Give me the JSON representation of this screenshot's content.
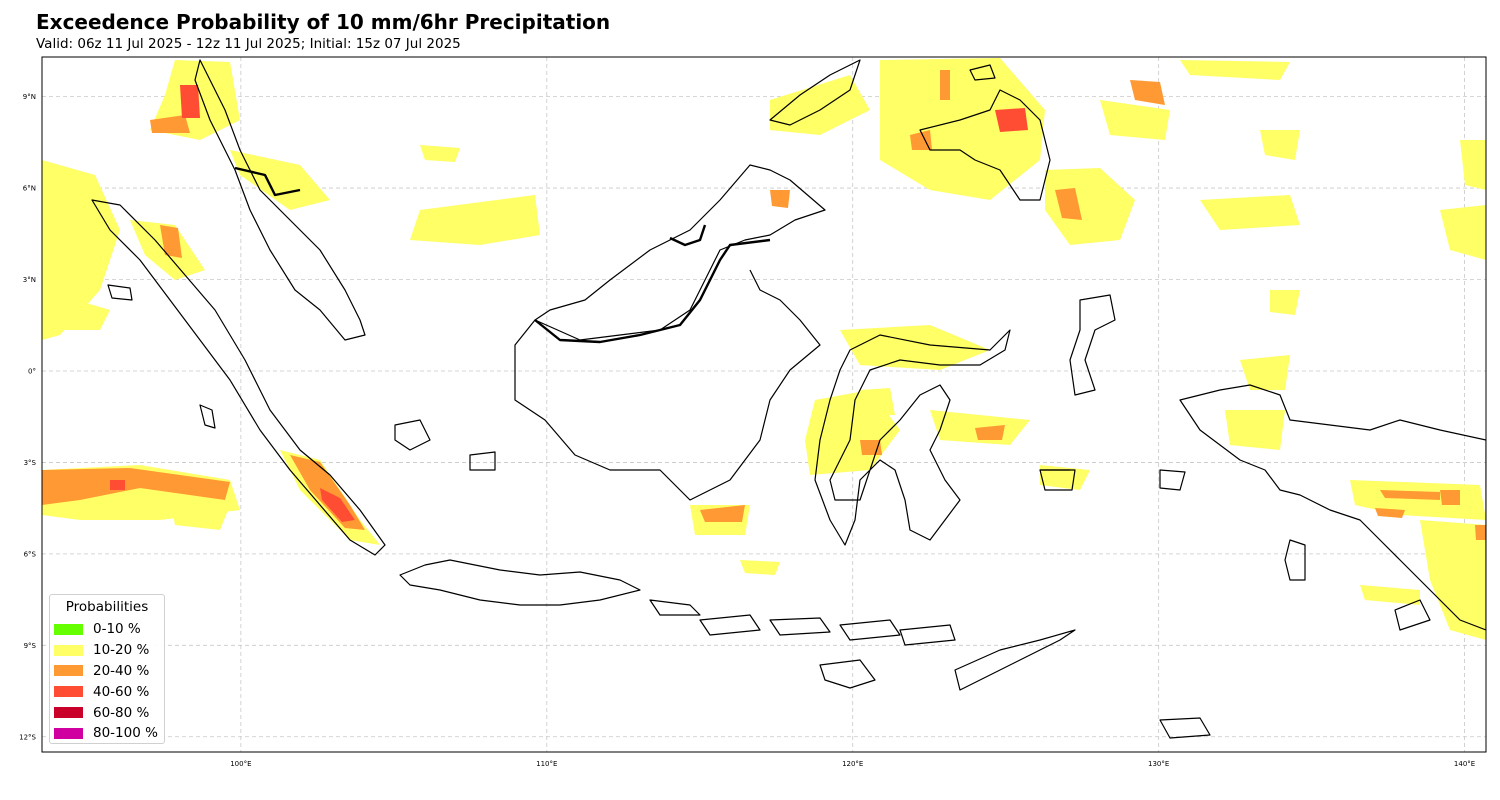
{
  "title": "Exceedence Probability of 10 mm/6hr Precipitation",
  "subtitle": "Valid: 06z 11 Jul 2025 - 12z 11 Jul 2025; Initial: 15z 07 Jul 2025",
  "map": {
    "extent": {
      "lon_min": 93.5,
      "lon_max": 140.7,
      "lat_min": -12.5,
      "lat_max": 10.3
    },
    "lon_ticks": [
      {
        "value": 100,
        "label": "100°E"
      },
      {
        "value": 110,
        "label": "110°E"
      },
      {
        "value": 120,
        "label": "120°E"
      },
      {
        "value": 130,
        "label": "130°E"
      },
      {
        "value": 140,
        "label": "140°E"
      }
    ],
    "lat_ticks": [
      {
        "value": 9,
        "label": "9°N"
      },
      {
        "value": 6,
        "label": "6°N"
      },
      {
        "value": 3,
        "label": "3°N"
      },
      {
        "value": 0,
        "label": "0°"
      },
      {
        "value": -3,
        "label": "3°S"
      },
      {
        "value": -6,
        "label": "6°S"
      },
      {
        "value": -9,
        "label": "9°S"
      },
      {
        "value": -12,
        "label": "12°S"
      }
    ],
    "gridlines": true
  },
  "legend": {
    "title": "Probabilities",
    "items": [
      {
        "label": "0-10 %",
        "color": "#66ff00"
      },
      {
        "label": "10-20 %",
        "color": "#ffff66"
      },
      {
        "label": "20-40 %",
        "color": "#ff9933"
      },
      {
        "label": "40-60 %",
        "color": "#ff4d33"
      },
      {
        "label": "60-80 %",
        "color": "#c8002a"
      },
      {
        "label": "80-100 %",
        "color": "#d000a0"
      }
    ]
  },
  "colors": {
    "coastline": "#000000",
    "grid": "#c8c8c8",
    "background": "#ffffff"
  }
}
